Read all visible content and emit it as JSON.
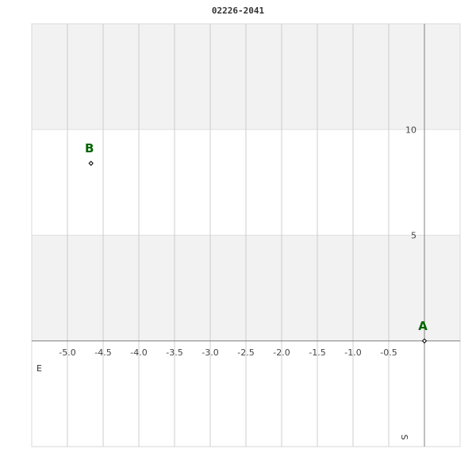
{
  "chart_data": {
    "type": "scatter",
    "title": "02226-2041",
    "xlabel": "E",
    "ylabel": "S",
    "xlim": [
      -5.5,
      0.5
    ],
    "ylim": [
      -5,
      15
    ],
    "xticks": [
      "-5.0",
      "-4.5",
      "-4.0",
      "-3.5",
      "-3.0",
      "-2.5",
      "-2.0",
      "-1.5",
      "-1.0",
      "-0.5"
    ],
    "xtick_values": [
      -5.0,
      -4.5,
      -4.0,
      -3.5,
      -3.0,
      -2.5,
      -2.0,
      -1.5,
      -1.0,
      -0.5
    ],
    "yticks": [
      "5",
      "10"
    ],
    "ytick_values": [
      5,
      10
    ],
    "grid": true,
    "points": [
      {
        "label": "A",
        "x": 0.0,
        "y": 0.0
      },
      {
        "label": "B",
        "x": -4.67,
        "y": 8.4
      }
    ],
    "colors": {
      "label": "#006400",
      "band": "#f2f2f2",
      "grid": "#cccccc",
      "axis": "#808080"
    }
  }
}
